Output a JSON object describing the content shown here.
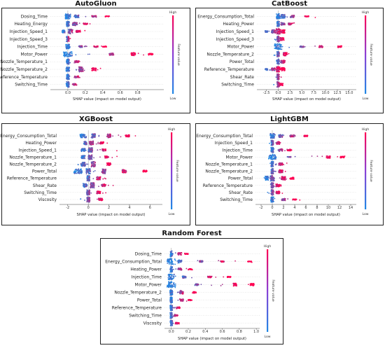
{
  "colors": {
    "low": "#1e88e5",
    "high": "#ff0052"
  },
  "charts": [
    {
      "title": "AutoGluon",
      "xlabel": "SHAP value (impact on model output)",
      "colorbar": {
        "high": "High",
        "low": "Low",
        "label": "Feature value"
      }
    },
    {
      "title": "CatBoost",
      "xlabel": "SHAP value (impact on model output)",
      "colorbar": {
        "high": "High",
        "low": "Low",
        "label": "Feature value"
      }
    },
    {
      "title": "XGBoost",
      "xlabel": "SHAP value (impact on model output)",
      "colorbar": {
        "high": "High",
        "low": "Low",
        "label": "Feature value"
      }
    },
    {
      "title": "LightGBM",
      "xlabel": "SHAP value (impact on model output)",
      "colorbar": {
        "high": "High",
        "low": "Low",
        "label": "Feature value"
      }
    },
    {
      "title": "Random Forest",
      "xlabel": "SHAP value (impact on model output)",
      "colorbar": {
        "high": "High",
        "low": "Low",
        "label": "Feature value"
      }
    }
  ],
  "chart_data": [
    {
      "type": "scatter",
      "title": "AutoGluon",
      "xlabel": "SHAP value (impact on model output)",
      "xlim": [
        -0.2,
        1.1
      ],
      "xticks": [
        "0.0",
        "0.2",
        "0.4",
        "0.6",
        "0.8"
      ],
      "xtick_values": [
        0.0,
        0.2,
        0.4,
        0.6,
        0.8
      ],
      "features": [
        {
          "name": "Dosing_Time",
          "low": -0.02,
          "high": 0.6,
          "clusters": [
            [
              0.0,
              0.9
            ],
            [
              0.1,
              0.5
            ],
            [
              0.3,
              0.25
            ],
            [
              0.45,
              0.15
            ]
          ]
        },
        {
          "name": "Heating_Energy",
          "low": -0.03,
          "high": 0.3,
          "clusters": [
            [
              0.0,
              0.9
            ],
            [
              0.08,
              0.6
            ],
            [
              0.2,
              0.3
            ]
          ]
        },
        {
          "name": "Injection_Speed_1",
          "low": -0.08,
          "high": 0.2,
          "clusters": [
            [
              -0.05,
              0.5
            ],
            [
              0.03,
              0.8
            ],
            [
              0.12,
              0.4
            ]
          ]
        },
        {
          "name": "Injection_Speed_3",
          "low": -0.02,
          "high": 0.03,
          "clusters": [
            [
              0.0,
              0.9
            ]
          ]
        },
        {
          "name": "Injection_Time",
          "low": -0.02,
          "high": 0.45,
          "clusters": [
            [
              0.0,
              0.8
            ],
            [
              0.15,
              0.3
            ],
            [
              0.32,
              0.25
            ],
            [
              0.42,
              0.15
            ]
          ]
        },
        {
          "name": "Motor_Power",
          "low": -0.02,
          "high": 1.0,
          "clusters": [
            [
              0.0,
              0.9
            ],
            [
              0.5,
              0.4
            ],
            [
              0.75,
              0.55
            ],
            [
              0.95,
              0.3
            ]
          ]
        },
        {
          "name": "Nozzle_Temperature_1",
          "low": -0.02,
          "high": 0.18,
          "clusters": [
            [
              0.0,
              1.0
            ],
            [
              0.1,
              0.4
            ]
          ]
        },
        {
          "name": "Nozzle_Temperature_2",
          "low": -0.02,
          "high": 0.4,
          "clusters": [
            [
              0.0,
              0.8
            ],
            [
              0.15,
              0.9
            ],
            [
              0.3,
              0.5
            ]
          ]
        },
        {
          "name": "Reference_Temperature",
          "low": -0.02,
          "high": 0.2,
          "clusters": [
            [
              0.0,
              0.9
            ],
            [
              0.1,
              0.35
            ]
          ]
        },
        {
          "name": "Switching_Time",
          "low": -0.02,
          "high": 0.15,
          "clusters": [
            [
              0.0,
              1.0
            ],
            [
              0.08,
              0.3
            ]
          ]
        }
      ]
    },
    {
      "type": "scatter",
      "title": "CatBoost",
      "xlabel": "SHAP value (impact on model output)",
      "xlim": [
        -4.5,
        16.5
      ],
      "xticks": [
        "-2.5",
        "0.0",
        "2.5",
        "5.0",
        "7.5",
        "10.0",
        "12.5",
        "15.0"
      ],
      "xtick_values": [
        -2.5,
        0,
        2.5,
        5,
        7.5,
        10,
        12.5,
        15
      ],
      "features": [
        {
          "name": "Energy_Consumption_Total",
          "low": -0.5,
          "high": 8,
          "clusters": [
            [
              0,
              0.9
            ],
            [
              1,
              0.7
            ],
            [
              3,
              0.4
            ],
            [
              6,
              0.2
            ]
          ]
        },
        {
          "name": "Heating_Power",
          "low": -0.5,
          "high": 4,
          "clusters": [
            [
              0,
              0.9
            ],
            [
              1,
              0.5
            ],
            [
              2.5,
              0.3
            ]
          ]
        },
        {
          "name": "Injection_Speed_1",
          "low": -3,
          "high": 2,
          "clusters": [
            [
              -2.5,
              0.3
            ],
            [
              -1,
              0.6
            ],
            [
              0,
              1.0
            ],
            [
              1,
              0.6
            ]
          ]
        },
        {
          "name": "Injection_Speed_3",
          "low": -1,
          "high": 1.5,
          "clusters": [
            [
              0,
              1.0
            ],
            [
              0.8,
              0.5
            ]
          ]
        },
        {
          "name": "Motor_Power",
          "low": -0.5,
          "high": 15,
          "clusters": [
            [
              0,
              1.0
            ],
            [
              5,
              0.25
            ],
            [
              9,
              0.35
            ],
            [
              13,
              0.35
            ]
          ]
        },
        {
          "name": "Nozzle_Temperature_2",
          "low": -1,
          "high": 2.5,
          "clusters": [
            [
              0,
              0.9
            ],
            [
              1.5,
              0.6
            ]
          ]
        },
        {
          "name": "Power_Total",
          "low": -0.5,
          "high": 2,
          "clusters": [
            [
              0,
              0.9
            ],
            [
              1,
              0.5
            ]
          ]
        },
        {
          "name": "Reference_Temperature",
          "low": -3,
          "high": 1.5,
          "clusters": [
            [
              -2.5,
              0.3
            ],
            [
              -1,
              0.5
            ],
            [
              0,
              1.0
            ],
            [
              1,
              0.6
            ]
          ]
        },
        {
          "name": "Shear_Rate",
          "low": -1,
          "high": 1,
          "clusters": [
            [
              0,
              1.0
            ]
          ]
        },
        {
          "name": "Switching_Time",
          "low": -1,
          "high": 1,
          "clusters": [
            [
              0,
              1.0
            ],
            [
              0.6,
              0.4
            ]
          ]
        }
      ]
    },
    {
      "type": "scatter",
      "title": "XGBoost",
      "xlabel": "SHAP value (impact on model output)",
      "xlim": [
        -2.8,
        7.2
      ],
      "xticks": [
        "-2",
        "0",
        "2",
        "4",
        "6"
      ],
      "xtick_values": [
        -2,
        0,
        2,
        4,
        6
      ],
      "features": [
        {
          "name": "Energy_Consumption_Total",
          "low": -1,
          "high": 5,
          "clusters": [
            [
              -0.5,
              0.7
            ],
            [
              0.5,
              0.8
            ],
            [
              2,
              0.7
            ],
            [
              3.8,
              0.4
            ]
          ]
        },
        {
          "name": "Heating_Power",
          "low": -1,
          "high": 2,
          "clusters": [
            [
              -0.3,
              0.7
            ],
            [
              0.3,
              0.8
            ],
            [
              1.3,
              0.4
            ]
          ]
        },
        {
          "name": "Injection_Speed_1",
          "low": -1,
          "high": 3,
          "clusters": [
            [
              -0.5,
              0.6
            ],
            [
              0.2,
              0.9
            ],
            [
              1.5,
              0.4
            ]
          ]
        },
        {
          "name": "Nozzle_Temperature_1",
          "low": -1,
          "high": 3,
          "clusters": [
            [
              -0.5,
              0.6
            ],
            [
              0.2,
              0.9
            ],
            [
              1.8,
              0.4
            ]
          ]
        },
        {
          "name": "Nozzle_Temperature_2",
          "low": -1.5,
          "high": 3,
          "clusters": [
            [
              -0.5,
              0.8
            ],
            [
              0.5,
              1.0
            ],
            [
              2,
              0.5
            ]
          ]
        },
        {
          "name": "Power_Total",
          "low": -1.5,
          "high": 6.5,
          "clusters": [
            [
              -1,
              0.9
            ],
            [
              0,
              1.0
            ],
            [
              1.5,
              0.9
            ],
            [
              3.5,
              0.6
            ],
            [
              5.5,
              0.4
            ]
          ]
        },
        {
          "name": "Reference_Temperature",
          "low": -0.5,
          "high": 2,
          "clusters": [
            [
              0,
              1.0
            ],
            [
              1,
              0.6
            ]
          ]
        },
        {
          "name": "Shear_Rate",
          "low": -1,
          "high": 3,
          "clusters": [
            [
              -0.3,
              0.7
            ],
            [
              0.4,
              1.0
            ],
            [
              1.5,
              0.5
            ]
          ]
        },
        {
          "name": "Switching_Time",
          "low": -1,
          "high": 2,
          "clusters": [
            [
              0,
              1.0
            ],
            [
              1,
              0.5
            ]
          ]
        },
        {
          "name": "Viscosity",
          "low": -1,
          "high": 2,
          "clusters": [
            [
              0,
              1.0
            ],
            [
              1.2,
              0.5
            ]
          ]
        }
      ]
    },
    {
      "type": "scatter",
      "title": "LightGBM",
      "xlabel": "SHAP value (impact on model output)",
      "xlim": [
        -3,
        15
      ],
      "xticks": [
        "-2",
        "0",
        "2",
        "4",
        "6",
        "8",
        "10",
        "12",
        "14"
      ],
      "xtick_values": [
        -2,
        0,
        2,
        4,
        6,
        8,
        10,
        12,
        14
      ],
      "features": [
        {
          "name": "Energy_Consumption_Total",
          "low": -0.5,
          "high": 7,
          "clusters": [
            [
              0,
              0.9
            ],
            [
              1.5,
              0.6
            ],
            [
              3.5,
              0.4
            ],
            [
              6,
              0.25
            ]
          ]
        },
        {
          "name": "Injection_Speed_1",
          "low": -0.5,
          "high": 2,
          "clusters": [
            [
              0,
              1.0
            ],
            [
              1,
              0.5
            ]
          ]
        },
        {
          "name": "Injection_Time",
          "low": -0.5,
          "high": 4,
          "clusters": [
            [
              0,
              1.0
            ],
            [
              1.5,
              0.5
            ],
            [
              3,
              0.3
            ]
          ]
        },
        {
          "name": "Motor_Power",
          "low": -0.5,
          "high": 13,
          "clusters": [
            [
              0,
              1.0
            ],
            [
              3,
              0.2
            ],
            [
              10,
              0.4
            ],
            [
              12.5,
              0.3
            ]
          ]
        },
        {
          "name": "Nozzle_Temperature_1",
          "low": -0.5,
          "high": 3,
          "clusters": [
            [
              0,
              1.0
            ],
            [
              1.5,
              0.5
            ]
          ]
        },
        {
          "name": "Nozzle_Temperature_2",
          "low": -1,
          "high": 3,
          "clusters": [
            [
              0,
              1.0
            ],
            [
              1.5,
              0.6
            ]
          ]
        },
        {
          "name": "Power_Total",
          "low": -1.5,
          "high": 4,
          "clusters": [
            [
              -1,
              0.8
            ],
            [
              0,
              1.0
            ],
            [
              2,
              0.7
            ],
            [
              3.5,
              0.4
            ]
          ]
        },
        {
          "name": "Reference_Temperature",
          "low": -1,
          "high": 2,
          "clusters": [
            [
              0,
              1.0
            ],
            [
              1,
              0.5
            ]
          ]
        },
        {
          "name": "Shear_Rate",
          "low": -1,
          "high": 2,
          "clusters": [
            [
              0,
              1.0
            ],
            [
              1,
              0.5
            ]
          ]
        },
        {
          "name": "Switching_Time",
          "low": -0.5,
          "high": 5,
          "clusters": [
            [
              0,
              1.0
            ],
            [
              2,
              0.4
            ],
            [
              4,
              0.2
            ]
          ]
        }
      ]
    },
    {
      "type": "scatter",
      "title": "Random Forest",
      "xlabel": "SHAP value (impact on model output)",
      "xlim": [
        -0.08,
        1.04
      ],
      "xticks": [
        "0.0",
        "0.2",
        "0.4",
        "0.6",
        "0.8",
        "1.0"
      ],
      "xtick_values": [
        0,
        0.2,
        0.4,
        0.6,
        0.8,
        1.0
      ],
      "features": [
        {
          "name": "Dosing_Time",
          "low": -0.02,
          "high": 0.2,
          "clusters": [
            [
              0,
              1.0
            ],
            [
              0.1,
              0.4
            ],
            [
              0.18,
              0.2
            ]
          ]
        },
        {
          "name": "Energy_Consumption_Total",
          "low": -0.02,
          "high": 0.95,
          "clusters": [
            [
              0,
              1.0
            ],
            [
              0.1,
              0.5
            ],
            [
              0.35,
              0.3
            ],
            [
              0.6,
              0.2
            ],
            [
              0.92,
              0.15
            ]
          ]
        },
        {
          "name": "Heating_Power",
          "low": -0.02,
          "high": 0.25,
          "clusters": [
            [
              0,
              1.0
            ],
            [
              0.1,
              0.4
            ],
            [
              0.22,
              0.2
            ]
          ]
        },
        {
          "name": "Injection_Time",
          "low": -0.02,
          "high": 0.7,
          "clusters": [
            [
              0,
              1.0
            ],
            [
              0.15,
              0.4
            ],
            [
              0.45,
              0.3
            ],
            [
              0.68,
              0.2
            ]
          ]
        },
        {
          "name": "Motor_Power",
          "low": -0.02,
          "high": 1.0,
          "clusters": [
            [
              0,
              1.0
            ],
            [
              0.3,
              0.3
            ],
            [
              0.75,
              0.5
            ],
            [
              0.95,
              0.4
            ]
          ]
        },
        {
          "name": "Nozzle_Temperature_2",
          "low": -0.03,
          "high": 0.3,
          "clusters": [
            [
              0,
              1.0
            ],
            [
              0.12,
              0.6
            ],
            [
              0.27,
              0.3
            ]
          ]
        },
        {
          "name": "Power_Total",
          "low": -0.02,
          "high": 0.25,
          "clusters": [
            [
              0,
              1.0
            ],
            [
              0.12,
              0.4
            ],
            [
              0.22,
              0.2
            ]
          ]
        },
        {
          "name": "Reference_Temperature",
          "low": -0.02,
          "high": 0.12,
          "clusters": [
            [
              0,
              1.0
            ],
            [
              0.08,
              0.3
            ]
          ]
        },
        {
          "name": "Switching_Time",
          "low": -0.02,
          "high": 0.1,
          "clusters": [
            [
              0,
              1.0
            ],
            [
              0.06,
              0.3
            ]
          ]
        },
        {
          "name": "Viscosity",
          "low": -0.02,
          "high": 0.1,
          "clusters": [
            [
              0,
              1.0
            ],
            [
              0.07,
              0.3
            ]
          ]
        }
      ]
    }
  ]
}
